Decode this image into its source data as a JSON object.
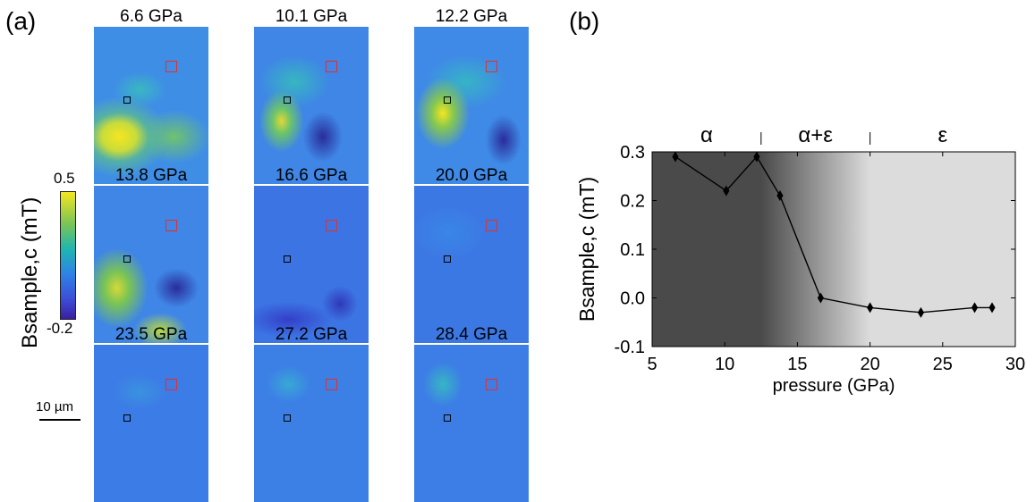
{
  "panel_a": {
    "label": "(a)",
    "map_titles": [
      "6.6 GPa",
      "10.1 GPa",
      "12.2 GPa",
      "13.8 GPa",
      "16.6 GPa",
      "20.0 GPa",
      "23.5 GPa",
      "27.2 GPa",
      "28.4 GPa"
    ],
    "colorbar": {
      "label": "Bsample,c (mT)",
      "max": "0.5",
      "min": "-0.2"
    },
    "scalebar": "10 µm",
    "colors": {
      "high": "#f5e61f",
      "mid": "#1fb6b1",
      "low": "#3a1fa0",
      "base": "#3c86e8"
    }
  },
  "panel_b": {
    "label": "(b)"
  },
  "chart_data": {
    "type": "line",
    "x": [
      6.6,
      10.1,
      12.2,
      13.8,
      16.6,
      20.0,
      23.5,
      27.2,
      28.4
    ],
    "y": [
      0.29,
      0.22,
      0.29,
      0.21,
      0.0,
      -0.02,
      -0.03,
      -0.02,
      -0.02
    ],
    "xlabel": "pressure (GPa)",
    "ylabel": "Bsample,c (mT)",
    "xlim": [
      5,
      30
    ],
    "ylim": [
      -0.1,
      0.3
    ],
    "xticks": [
      "5",
      "10",
      "15",
      "20",
      "25",
      "30"
    ],
    "yticks": [
      "-0.1",
      "0.0",
      "0.1",
      "0.2",
      "0.3"
    ],
    "phases": [
      {
        "label": "α",
        "start": 5,
        "end": 12.5
      },
      {
        "label": "α+ε",
        "start": 12.5,
        "end": 20
      },
      {
        "label": "ε",
        "start": 20,
        "end": 30
      }
    ],
    "marker": "diamond",
    "line_color": "#000000",
    "background": {
      "dark": "#4a4a4a",
      "light": "#dcdcdc"
    }
  }
}
